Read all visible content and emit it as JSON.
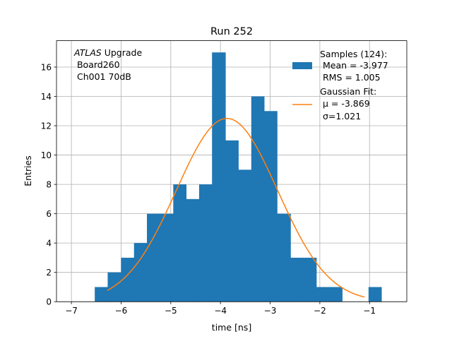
{
  "chart_data": {
    "type": "histogram",
    "title": "Run 252",
    "xlabel": "time [ns]",
    "ylabel": "Entries",
    "xlim": [
      -7.3,
      -0.25
    ],
    "ylim": [
      0,
      17.8
    ],
    "xticks": [
      -7,
      -6,
      -5,
      -4,
      -3,
      -2,
      -1
    ],
    "xtick_labels": [
      "−7",
      "−6",
      "−5",
      "−4",
      "−3",
      "−2",
      "−1"
    ],
    "yticks": [
      0,
      2,
      4,
      6,
      8,
      10,
      12,
      14,
      16
    ],
    "ytick_labels": [
      "0",
      "2",
      "4",
      "6",
      "8",
      "10",
      "12",
      "14",
      "16"
    ],
    "grid": true,
    "bins": [
      {
        "x0": -6.53,
        "x1": -6.27,
        "count": 1
      },
      {
        "x0": -6.27,
        "x1": -6.0,
        "count": 2
      },
      {
        "x0": -6.0,
        "x1": -5.74,
        "count": 3
      },
      {
        "x0": -5.74,
        "x1": -5.48,
        "count": 4
      },
      {
        "x0": -5.48,
        "x1": -5.22,
        "count": 6
      },
      {
        "x0": -5.22,
        "x1": -4.95,
        "count": 6
      },
      {
        "x0": -4.95,
        "x1": -4.69,
        "count": 8
      },
      {
        "x0": -4.69,
        "x1": -4.43,
        "count": 7
      },
      {
        "x0": -4.43,
        "x1": -4.17,
        "count": 8
      },
      {
        "x0": -4.17,
        "x1": -3.9,
        "count": 17
      },
      {
        "x0": -3.9,
        "x1": -3.64,
        "count": 11
      },
      {
        "x0": -3.64,
        "x1": -3.38,
        "count": 9
      },
      {
        "x0": -3.38,
        "x1": -3.12,
        "count": 14
      },
      {
        "x0": -3.12,
        "x1": -2.86,
        "count": 13
      },
      {
        "x0": -2.86,
        "x1": -2.59,
        "count": 6
      },
      {
        "x0": -2.59,
        "x1": -2.33,
        "count": 3
      },
      {
        "x0": -2.33,
        "x1": -2.07,
        "count": 3
      },
      {
        "x0": -2.07,
        "x1": -1.81,
        "count": 1
      },
      {
        "x0": -1.81,
        "x1": -1.55,
        "count": 1
      },
      {
        "x0": -1.55,
        "x1": -1.28,
        "count": 0
      },
      {
        "x0": -1.28,
        "x1": -1.02,
        "count": 0
      },
      {
        "x0": -1.02,
        "x1": -0.76,
        "count": 1
      }
    ],
    "fit": {
      "type": "gaussian",
      "mu": -3.869,
      "sigma": 1.021,
      "amplitude": 12.5,
      "x_start": -6.28,
      "x_end": -1.1
    },
    "series_colors": {
      "histogram": "#1f77b4",
      "fit": "#ff7f0e"
    },
    "legend": {
      "placement": "top-right",
      "histogram_lines": [
        "Samples (124):",
        " Mean = -3.977",
        " RMS = 1.005"
      ],
      "fit_lines": [
        "Gaussian Fit:",
        " μ = -3.869",
        " σ=1.021"
      ]
    },
    "annotation": {
      "placement": "top-left",
      "atlas": "ATLAS",
      "line1_rest": " Upgrade",
      "line2": " Board260",
      "line3": " Ch001 70dB"
    }
  }
}
